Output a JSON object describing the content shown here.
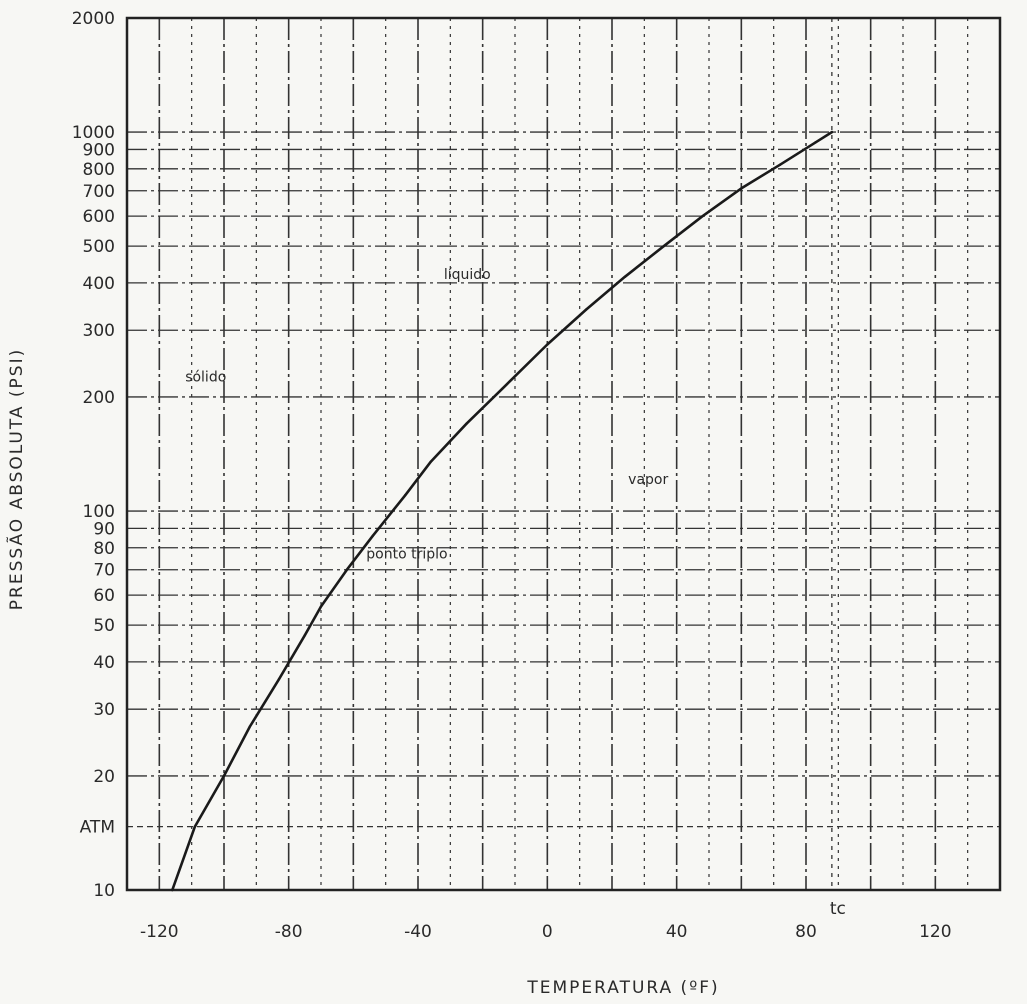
{
  "chart_data": {
    "type": "line",
    "title": "",
    "xlabel": "TEMPERATURA (ºF)",
    "ylabel": "PRESSÃO ABSOLUTA (PSI)",
    "x_scale": "linear",
    "y_scale": "log",
    "xlim": [
      -130,
      140
    ],
    "ylim": [
      10,
      2000
    ],
    "grid": true,
    "x_ticks": [
      -120,
      -80,
      -40,
      0,
      40,
      80,
      120
    ],
    "x_tick_labels": [
      "-120",
      "-80",
      "-40",
      "0",
      "40",
      "80",
      "120"
    ],
    "y_ticks": [
      10,
      20,
      30,
      40,
      50,
      60,
      70,
      80,
      90,
      100,
      200,
      300,
      400,
      500,
      600,
      700,
      800,
      900,
      1000,
      2000
    ],
    "y_tick_labels": [
      "10",
      "20",
      "30",
      "40",
      "50",
      "60",
      "70",
      "80",
      "90",
      "100",
      "200",
      "300",
      "400",
      "500",
      "600",
      "700",
      "800",
      "900",
      "1000",
      "2000"
    ],
    "atm_label": "ATM",
    "atm_value": 14.7,
    "tc_label": "tc",
    "tc_value": 88,
    "series": [
      {
        "x": [
          -116,
          -109,
          -100,
          -92,
          -83,
          -75,
          -70,
          -62,
          -54,
          -44,
          -36,
          -25,
          -14,
          0,
          12,
          24,
          36,
          48,
          60,
          72,
          83,
          88
        ],
        "y": [
          10,
          14.7,
          20,
          27,
          36,
          47,
          56,
          70,
          86,
          110,
          135,
          170,
          210,
          275,
          340,
          415,
          500,
          600,
          710,
          820,
          940,
          1000
        ]
      }
    ],
    "annotations": [
      {
        "text": "sólido",
        "x": -112,
        "y": 220
      },
      {
        "text": "líquido",
        "x": -32,
        "y": 410
      },
      {
        "text": "vapor",
        "x": 25,
        "y": 118
      },
      {
        "text": "ponto triplo",
        "x": -56,
        "y": 75
      }
    ]
  }
}
